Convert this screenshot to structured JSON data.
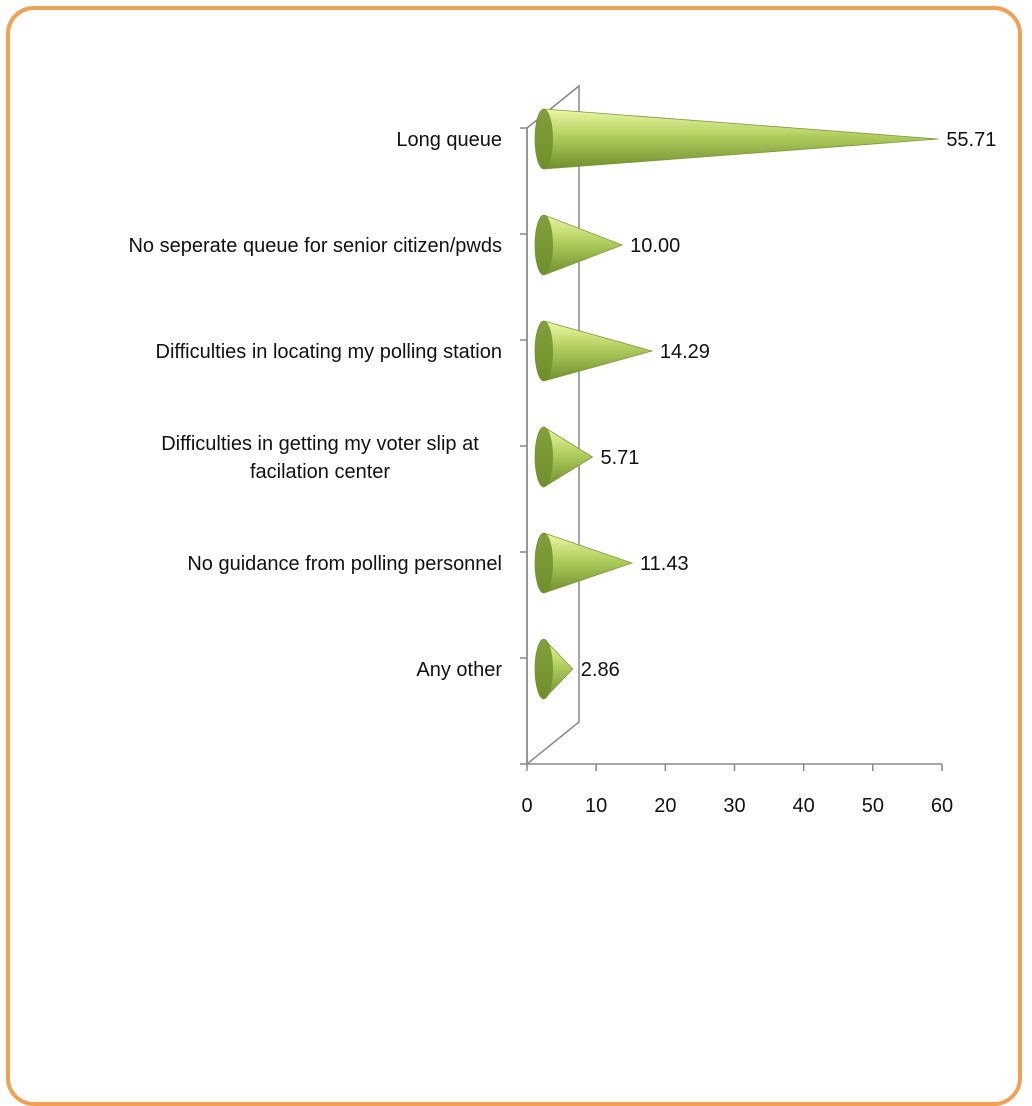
{
  "chart_data": {
    "type": "bar",
    "orientation": "horizontal",
    "shape": "cone",
    "title": "",
    "xlabel": "",
    "ylabel": "",
    "categories": [
      "Any other",
      "No guidance from polling personnel",
      "Difficulties in getting my voter slip at facilation center",
      "Difficulties in locating my polling station",
      "No seperate queue for senior citizen/pwds",
      "Long queue"
    ],
    "category_lines": [
      [
        "Any other"
      ],
      [
        "No guidance from polling personnel"
      ],
      [
        "Difficulties in getting my voter slip at",
        "facilation center"
      ],
      [
        "Difficulties in locating my polling station"
      ],
      [
        "No seperate queue for senior citizen/pwds"
      ],
      [
        "Long queue"
      ]
    ],
    "values": [
      2.86,
      11.43,
      5.71,
      14.29,
      10.0,
      55.71
    ],
    "value_labels": [
      "2.86",
      "11.43",
      "5.71",
      "14.29",
      "10.00",
      "55.71"
    ],
    "xlim": [
      0,
      60
    ],
    "xticks": [
      0,
      10,
      20,
      30,
      40,
      50,
      60
    ],
    "grid": false,
    "legend": "none",
    "colors": {
      "frame_border": "#f0a050",
      "cone_light": "#ecf7a4",
      "cone_mid": "#b5d163",
      "cone_dark": "#6f8f2c",
      "axis": "#888888"
    }
  }
}
